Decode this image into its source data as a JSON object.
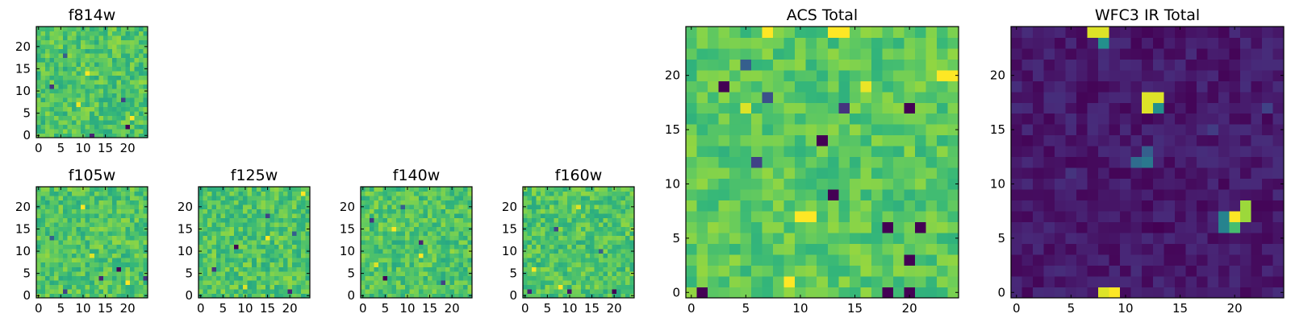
{
  "colormap": {
    "name": "viridis",
    "stops": [
      "#440154",
      "#482878",
      "#3e4989",
      "#31688e",
      "#26828e",
      "#1f9e89",
      "#35b779",
      "#6ece58",
      "#b5de2b",
      "#fde725"
    ]
  },
  "chart_data": [
    {
      "id": "f814w",
      "type": "heatmap",
      "title": "f814w",
      "grid_size": 25,
      "xlim": [
        -0.5,
        24.5
      ],
      "ylim": [
        -0.5,
        24.5
      ],
      "xticks": [
        0,
        5,
        10,
        15,
        20
      ],
      "yticks": [
        0,
        5,
        10,
        15,
        20
      ],
      "xtick_labels": [
        "0",
        "5",
        "10",
        "15",
        "20"
      ],
      "ytick_labels": [
        "0",
        "5",
        "10",
        "15",
        "20"
      ],
      "value_range": [
        0,
        1
      ],
      "typical_level": 0.72,
      "typical_spread": 0.12,
      "features": [
        {
          "x": 20,
          "y": 2,
          "value": 0.0
        },
        {
          "x": 12,
          "y": 0,
          "value": 0.1
        },
        {
          "x": 3,
          "y": 11,
          "value": 0.15
        },
        {
          "x": 19,
          "y": 8,
          "value": 0.2
        },
        {
          "x": 6,
          "y": 18,
          "value": 0.3
        },
        {
          "x": 21,
          "y": 4,
          "value": 1.0
        },
        {
          "x": 11,
          "y": 14,
          "value": 1.0
        },
        {
          "x": 9,
          "y": 7,
          "value": 0.97
        }
      ]
    },
    {
      "id": "f105w",
      "type": "heatmap",
      "title": "f105w",
      "grid_size": 25,
      "xlim": [
        -0.5,
        24.5
      ],
      "ylim": [
        -0.5,
        24.5
      ],
      "xticks": [
        0,
        5,
        10,
        15,
        20
      ],
      "yticks": [
        0,
        5,
        10,
        15,
        20
      ],
      "xtick_labels": [
        "0",
        "5",
        "10",
        "15",
        "20"
      ],
      "ytick_labels": [
        "0",
        "5",
        "10",
        "15",
        "20"
      ],
      "value_range": [
        0,
        1
      ],
      "typical_level": 0.72,
      "typical_spread": 0.12,
      "features": [
        {
          "x": 18,
          "y": 6,
          "value": 0.0
        },
        {
          "x": 14,
          "y": 4,
          "value": 0.1
        },
        {
          "x": 24,
          "y": 4,
          "value": 0.15
        },
        {
          "x": 6,
          "y": 1,
          "value": 0.2
        },
        {
          "x": 3,
          "y": 13,
          "value": 0.3
        },
        {
          "x": 10,
          "y": 20,
          "value": 1.0
        },
        {
          "x": 20,
          "y": 3,
          "value": 1.0
        },
        {
          "x": 12,
          "y": 9,
          "value": 0.95
        }
      ]
    },
    {
      "id": "f125w",
      "type": "heatmap",
      "title": "f125w",
      "grid_size": 25,
      "xlim": [
        -0.5,
        24.5
      ],
      "ylim": [
        -0.5,
        24.5
      ],
      "xticks": [
        0,
        5,
        10,
        15,
        20
      ],
      "yticks": [
        0,
        5,
        10,
        15,
        20
      ],
      "xtick_labels": [
        "0",
        "5",
        "10",
        "15",
        "20"
      ],
      "ytick_labels": [
        "0",
        "5",
        "10",
        "15",
        "20"
      ],
      "value_range": [
        0,
        1
      ],
      "typical_level": 0.72,
      "typical_spread": 0.12,
      "features": [
        {
          "x": 8,
          "y": 11,
          "value": 0.0
        },
        {
          "x": 20,
          "y": 1,
          "value": 0.1
        },
        {
          "x": 3,
          "y": 6,
          "value": 0.15
        },
        {
          "x": 15,
          "y": 18,
          "value": 0.2
        },
        {
          "x": 21,
          "y": 14,
          "value": 0.3
        },
        {
          "x": 15,
          "y": 13,
          "value": 1.0
        },
        {
          "x": 23,
          "y": 23,
          "value": 1.0
        },
        {
          "x": 10,
          "y": 2,
          "value": 0.95
        }
      ]
    },
    {
      "id": "f140w",
      "type": "heatmap",
      "title": "f140w",
      "grid_size": 25,
      "xlim": [
        -0.5,
        24.5
      ],
      "ylim": [
        -0.5,
        24.5
      ],
      "xticks": [
        0,
        5,
        10,
        15,
        20
      ],
      "yticks": [
        0,
        5,
        10,
        15,
        20
      ],
      "xtick_labels": [
        "0",
        "5",
        "10",
        "15",
        "20"
      ],
      "ytick_labels": [
        "0",
        "5",
        "10",
        "15",
        "20"
      ],
      "value_range": [
        0,
        1
      ],
      "typical_level": 0.72,
      "typical_spread": 0.12,
      "features": [
        {
          "x": 5,
          "y": 4,
          "value": 0.0
        },
        {
          "x": 13,
          "y": 12,
          "value": 0.1
        },
        {
          "x": 2,
          "y": 17,
          "value": 0.15
        },
        {
          "x": 18,
          "y": 3,
          "value": 0.2
        },
        {
          "x": 9,
          "y": 20,
          "value": 0.3
        },
        {
          "x": 13,
          "y": 9,
          "value": 1.0
        },
        {
          "x": 7,
          "y": 15,
          "value": 1.0
        },
        {
          "x": 3,
          "y": 7,
          "value": 0.95
        }
      ]
    },
    {
      "id": "f160w",
      "type": "heatmap",
      "title": "f160w",
      "grid_size": 25,
      "xlim": [
        -0.5,
        24.5
      ],
      "ylim": [
        -0.5,
        24.5
      ],
      "xticks": [
        0,
        5,
        10,
        15,
        20
      ],
      "yticks": [
        0,
        5,
        10,
        15,
        20
      ],
      "xtick_labels": [
        "0",
        "5",
        "10",
        "15",
        "20"
      ],
      "ytick_labels": [
        "0",
        "5",
        "10",
        "15",
        "20"
      ],
      "value_range": [
        0,
        1
      ],
      "typical_level": 0.72,
      "typical_spread": 0.12,
      "features": [
        {
          "x": 20,
          "y": 1,
          "value": 0.0
        },
        {
          "x": 10,
          "y": 1,
          "value": 0.05
        },
        {
          "x": 1,
          "y": 1,
          "value": 0.1
        },
        {
          "x": 7,
          "y": 15,
          "value": 0.2
        },
        {
          "x": 17,
          "y": 10,
          "value": 0.3
        },
        {
          "x": 8,
          "y": 2,
          "value": 1.0
        },
        {
          "x": 2,
          "y": 6,
          "value": 1.0
        },
        {
          "x": 12,
          "y": 20,
          "value": 0.95
        }
      ]
    },
    {
      "id": "acs-total",
      "type": "heatmap",
      "title": "ACS Total",
      "grid_size": 25,
      "xlim": [
        -0.5,
        24.5
      ],
      "ylim": [
        -0.5,
        24.5
      ],
      "xticks": [
        0,
        5,
        10,
        15,
        20
      ],
      "yticks": [
        0,
        5,
        10,
        15,
        20
      ],
      "xtick_labels": [
        "0",
        "5",
        "10",
        "15",
        "20"
      ],
      "ytick_labels": [
        "0",
        "5",
        "10",
        "15",
        "20"
      ],
      "value_range": [
        0,
        1
      ],
      "typical_level": 0.74,
      "typical_spread": 0.1,
      "features": [
        {
          "x": 1,
          "y": 0,
          "value": 0.0
        },
        {
          "x": 18,
          "y": 0,
          "value": 0.0
        },
        {
          "x": 20,
          "y": 0,
          "value": 0.0
        },
        {
          "x": 3,
          "y": 19,
          "value": 0.0
        },
        {
          "x": 20,
          "y": 17,
          "value": 0.0
        },
        {
          "x": 12,
          "y": 14,
          "value": 0.0
        },
        {
          "x": 13,
          "y": 9,
          "value": 0.0
        },
        {
          "x": 20,
          "y": 3,
          "value": 0.0
        },
        {
          "x": 21,
          "y": 6,
          "value": 0.0
        },
        {
          "x": 18,
          "y": 6,
          "value": 0.0
        },
        {
          "x": 14,
          "y": 17,
          "value": 0.15
        },
        {
          "x": 6,
          "y": 12,
          "value": 0.2
        },
        {
          "x": 7,
          "y": 18,
          "value": 0.25
        },
        {
          "x": 5,
          "y": 21,
          "value": 0.3
        },
        {
          "x": 7,
          "y": 24,
          "value": 1.0
        },
        {
          "x": 13,
          "y": 24,
          "value": 1.0
        },
        {
          "x": 14,
          "y": 24,
          "value": 1.0
        },
        {
          "x": 23,
          "y": 20,
          "value": 1.0
        },
        {
          "x": 24,
          "y": 20,
          "value": 1.0
        },
        {
          "x": 10,
          "y": 7,
          "value": 1.0
        },
        {
          "x": 11,
          "y": 7,
          "value": 1.0
        },
        {
          "x": 9,
          "y": 1,
          "value": 1.0
        },
        {
          "x": 16,
          "y": 19,
          "value": 0.97
        },
        {
          "x": 5,
          "y": 17,
          "value": 0.95
        }
      ]
    },
    {
      "id": "wfc3-ir-total",
      "type": "heatmap",
      "title": "WFC3 IR Total",
      "grid_size": 25,
      "xlim": [
        -0.5,
        24.5
      ],
      "ylim": [
        -0.5,
        24.5
      ],
      "xticks": [
        0,
        5,
        10,
        15,
        20
      ],
      "yticks": [
        0,
        5,
        10,
        15,
        20
      ],
      "xtick_labels": [
        "0",
        "5",
        "10",
        "15",
        "20"
      ],
      "ytick_labels": [
        "0",
        "5",
        "10",
        "15",
        "20"
      ],
      "value_range": [
        0,
        1
      ],
      "typical_level": 0.07,
      "typical_spread": 0.06,
      "features": [
        {
          "x": 7,
          "y": 24,
          "value": 0.95
        },
        {
          "x": 8,
          "y": 24,
          "value": 0.95
        },
        {
          "x": 8,
          "y": 23,
          "value": 0.5
        },
        {
          "x": 12,
          "y": 18,
          "value": 0.95
        },
        {
          "x": 13,
          "y": 18,
          "value": 0.95
        },
        {
          "x": 12,
          "y": 17,
          "value": 0.95
        },
        {
          "x": 13,
          "y": 17,
          "value": 0.5
        },
        {
          "x": 11,
          "y": 12,
          "value": 0.35
        },
        {
          "x": 12,
          "y": 12,
          "value": 0.4
        },
        {
          "x": 12,
          "y": 13,
          "value": 0.3
        },
        {
          "x": 21,
          "y": 8,
          "value": 0.85
        },
        {
          "x": 20,
          "y": 7,
          "value": 1.0
        },
        {
          "x": 21,
          "y": 7,
          "value": 0.85
        },
        {
          "x": 19,
          "y": 7,
          "value": 0.45
        },
        {
          "x": 19,
          "y": 6,
          "value": 0.45
        },
        {
          "x": 20,
          "y": 6,
          "value": 0.7
        },
        {
          "x": 8,
          "y": 0,
          "value": 0.95
        },
        {
          "x": 9,
          "y": 0,
          "value": 1.0
        },
        {
          "x": 18,
          "y": 15,
          "value": 0.18
        },
        {
          "x": 23,
          "y": 17,
          "value": 0.2
        },
        {
          "x": 5,
          "y": 11,
          "value": 0.15
        },
        {
          "x": 13,
          "y": 6,
          "value": 0.0
        }
      ]
    }
  ]
}
